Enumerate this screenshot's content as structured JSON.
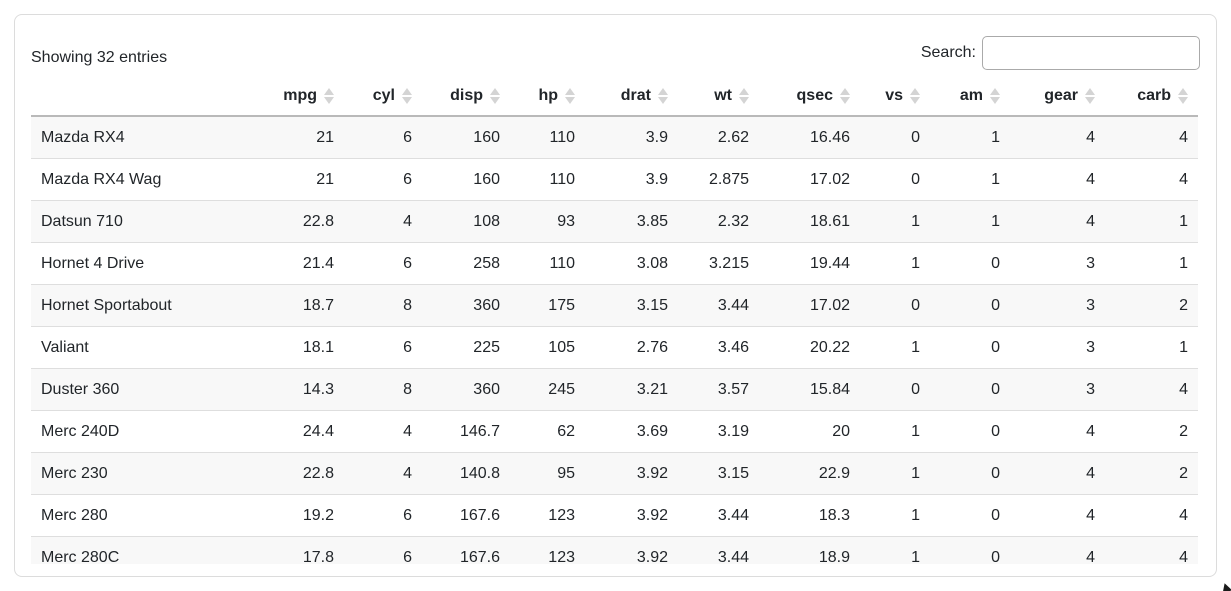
{
  "colors": {
    "card_border": "#dcdcdc",
    "header_underline": "#b9b9b9",
    "row_separator": "#dedede",
    "stripe": "#f8f8f8",
    "text": "#212529",
    "sort_icon": "#d4d4d4"
  },
  "topbar": {
    "info_text": "Showing 32 entries",
    "search_label": "Search:",
    "search_value": "",
    "search_placeholder": ""
  },
  "table": {
    "columns": [
      {
        "key": "rowname",
        "label": ""
      },
      {
        "key": "mpg",
        "label": "mpg"
      },
      {
        "key": "cyl",
        "label": "cyl"
      },
      {
        "key": "disp",
        "label": "disp"
      },
      {
        "key": "hp",
        "label": "hp"
      },
      {
        "key": "drat",
        "label": "drat"
      },
      {
        "key": "wt",
        "label": "wt"
      },
      {
        "key": "qsec",
        "label": "qsec"
      },
      {
        "key": "vs",
        "label": "vs"
      },
      {
        "key": "am",
        "label": "am"
      },
      {
        "key": "gear",
        "label": "gear"
      },
      {
        "key": "carb",
        "label": "carb"
      }
    ],
    "rows": [
      [
        "Mazda RX4",
        "21",
        "6",
        "160",
        "110",
        "3.9",
        "2.62",
        "16.46",
        "0",
        "1",
        "4",
        "4"
      ],
      [
        "Mazda RX4 Wag",
        "21",
        "6",
        "160",
        "110",
        "3.9",
        "2.875",
        "17.02",
        "0",
        "1",
        "4",
        "4"
      ],
      [
        "Datsun 710",
        "22.8",
        "4",
        "108",
        "93",
        "3.85",
        "2.32",
        "18.61",
        "1",
        "1",
        "4",
        "1"
      ],
      [
        "Hornet 4 Drive",
        "21.4",
        "6",
        "258",
        "110",
        "3.08",
        "3.215",
        "19.44",
        "1",
        "0",
        "3",
        "1"
      ],
      [
        "Hornet Sportabout",
        "18.7",
        "8",
        "360",
        "175",
        "3.15",
        "3.44",
        "17.02",
        "0",
        "0",
        "3",
        "2"
      ],
      [
        "Valiant",
        "18.1",
        "6",
        "225",
        "105",
        "2.76",
        "3.46",
        "20.22",
        "1",
        "0",
        "3",
        "1"
      ],
      [
        "Duster 360",
        "14.3",
        "8",
        "360",
        "245",
        "3.21",
        "3.57",
        "15.84",
        "0",
        "0",
        "3",
        "4"
      ],
      [
        "Merc 240D",
        "24.4",
        "4",
        "146.7",
        "62",
        "3.69",
        "3.19",
        "20",
        "1",
        "0",
        "4",
        "2"
      ],
      [
        "Merc 230",
        "22.8",
        "4",
        "140.8",
        "95",
        "3.92",
        "3.15",
        "22.9",
        "1",
        "0",
        "4",
        "2"
      ],
      [
        "Merc 280",
        "19.2",
        "6",
        "167.6",
        "123",
        "3.92",
        "3.44",
        "18.3",
        "1",
        "0",
        "4",
        "4"
      ],
      [
        "Merc 280C",
        "17.8",
        "6",
        "167.6",
        "123",
        "3.92",
        "3.44",
        "18.9",
        "1",
        "0",
        "4",
        "4"
      ]
    ]
  }
}
